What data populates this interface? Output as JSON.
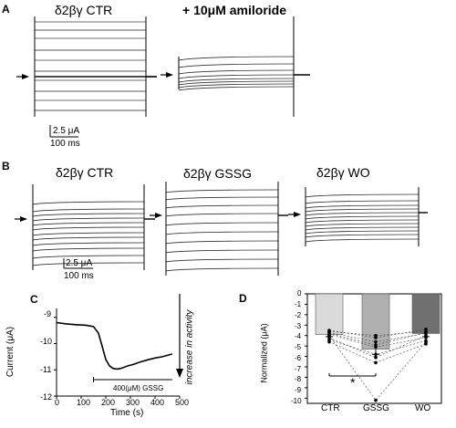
{
  "panels": {
    "A": {
      "label": "A",
      "left_title": "δ2βγ CTR",
      "right_title": "+ 10μM amiloride",
      "scale_current": "2.5 μA",
      "scale_time": "100 ms"
    },
    "B": {
      "label": "B",
      "titles": [
        "δ2βγ CTR",
        "δ2βγ GSSG",
        "δ2βγ WO"
      ],
      "scale_current": "2.5 μA",
      "scale_time": "100 ms"
    },
    "C": {
      "label": "C",
      "xlabel": "Time (s)",
      "ylabel": "Current (μA)",
      "annotation": "increase in activity",
      "bar_label": "400(μM) GSSG",
      "xticks": [
        "0",
        "100",
        "200",
        "300",
        "400",
        "500"
      ],
      "yticks": [
        "-9",
        "-10",
        "-11",
        "-12"
      ]
    },
    "D": {
      "label": "D",
      "ylabel": "Normalized (μA)",
      "yticks": [
        "0",
        "-1",
        "-2",
        "-3",
        "-4",
        "-5",
        "-6",
        "-7",
        "-8",
        "-9",
        "-10"
      ],
      "categories": [
        "CTR",
        "GSSG",
        "WO"
      ],
      "significance": "*"
    }
  },
  "chart_data": [
    {
      "type": "line",
      "panel": "C",
      "xlabel": "Time (s)",
      "ylabel": "Current (μA)",
      "xlim": [
        0,
        500
      ],
      "ylim": [
        -12,
        -8.8
      ],
      "x": [
        0,
        40,
        80,
        120,
        150,
        170,
        185,
        200,
        215,
        230,
        245,
        260,
        275,
        290,
        310,
        340,
        370,
        400,
        430,
        460,
        470
      ],
      "y": [
        -9.2,
        -9.25,
        -9.28,
        -9.3,
        -9.35,
        -9.6,
        -10.1,
        -10.6,
        -10.85,
        -10.95,
        -10.97,
        -10.95,
        -10.9,
        -10.85,
        -10.8,
        -10.7,
        -10.62,
        -10.55,
        -10.5,
        -10.42,
        -10.4
      ],
      "gssg_bar": [
        150,
        470
      ]
    },
    {
      "type": "bar",
      "panel": "D",
      "categories": [
        "CTR",
        "GSSG",
        "WO"
      ],
      "values": [
        -3.9,
        -5.3,
        -3.8
      ],
      "errors": [
        0.2,
        0.5,
        0.3
      ],
      "bar_colors": [
        "#dadada",
        "#b0b0b0",
        "#707070"
      ],
      "ylim": [
        -10.5,
        0
      ],
      "cells": [
        {
          "CTR": -3.9,
          "GSSG": -5.1,
          "WO": -4.2
        },
        {
          "CTR": -4.0,
          "GSSG": -10.2,
          "WO": -4.6
        },
        {
          "CTR": -3.5,
          "GSSG": -4.2,
          "WO": -3.4
        },
        {
          "CTR": -3.7,
          "GSSG": -4.6,
          "WO": -3.8
        },
        {
          "CTR": -4.2,
          "GSSG": -6.1,
          "WO": -4.0
        },
        {
          "CTR": -4.4,
          "GSSG": -5.8,
          "WO": -4.5
        },
        {
          "CTR": -3.6,
          "GSSG": -4.0,
          "WO": -3.6
        },
        {
          "CTR": -4.6,
          "GSSG": -6.6,
          "WO": -4.8
        },
        {
          "CTR": -3.8,
          "GSSG": -4.9,
          "WO": -3.7
        }
      ]
    }
  ]
}
